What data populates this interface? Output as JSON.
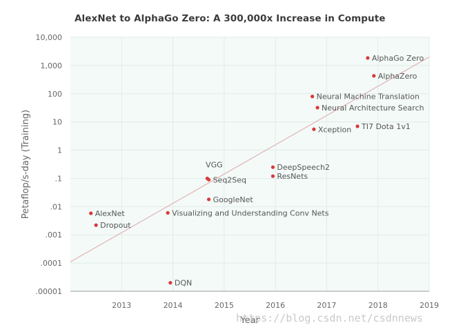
{
  "chart_data": {
    "type": "scatter",
    "title": "AlexNet to AlphaGo Zero: A 300,000x Increase in Compute",
    "xlabel": "Year",
    "ylabel": "Petaflop/s-day (Training)",
    "y_scale": "log",
    "xlim": [
      2012.0,
      2019.0
    ],
    "ylim": [
      1e-05,
      10000
    ],
    "x_ticks": [
      2013,
      2014,
      2015,
      2016,
      2017,
      2018,
      2019
    ],
    "x_tick_labels": [
      "2013",
      "2014",
      "2015",
      "2016",
      "2017",
      "2018",
      "2019"
    ],
    "y_ticks": [
      1e-05,
      0.0001,
      0.001,
      0.01,
      0.1,
      1,
      10,
      100,
      1000,
      10000
    ],
    "y_tick_labels": [
      ".00001",
      ".0001",
      ".001",
      ".01",
      ".1",
      "1",
      "10",
      "100",
      "1,000",
      "10,000"
    ],
    "grid": true,
    "trend_line": {
      "x": [
        2012.0,
        2019.0
      ],
      "y": [
        0.00011,
        2000
      ]
    },
    "points": [
      {
        "label": "AlexNet",
        "x": 2012.4,
        "y": 0.0058
      },
      {
        "label": "Dropout",
        "x": 2012.5,
        "y": 0.0022
      },
      {
        "label": "DQN",
        "x": 2013.95,
        "y": 2e-05
      },
      {
        "label": "Visualizing and Understanding Conv Nets",
        "x": 2013.9,
        "y": 0.006
      },
      {
        "label": "GoogleNet",
        "x": 2014.7,
        "y": 0.018
      },
      {
        "label": "Seq2Seq",
        "x": 2014.7,
        "y": 0.09
      },
      {
        "label": "VGG",
        "x": 2014.67,
        "y": 0.1
      },
      {
        "label": "DeepSpeech2",
        "x": 2015.95,
        "y": 0.25
      },
      {
        "label": "ResNets",
        "x": 2015.95,
        "y": 0.12
      },
      {
        "label": "Neural Machine Translation",
        "x": 2016.72,
        "y": 80
      },
      {
        "label": "Neural Architecture Search",
        "x": 2016.82,
        "y": 32
      },
      {
        "label": "Xception",
        "x": 2016.75,
        "y": 5.5
      },
      {
        "label": "TI7 Dota 1v1",
        "x": 2017.6,
        "y": 7
      },
      {
        "label": "AlphaGo Zero",
        "x": 2017.8,
        "y": 1850
      },
      {
        "label": "AlphaZero",
        "x": 2017.92,
        "y": 430
      }
    ]
  },
  "watermark": "https://blog.csdn.net/csdnnews",
  "colors": {
    "plot_bg": "#f3faf7",
    "grid": "#e2ece8",
    "point": "#d8393b",
    "trend": "#e0a3aa",
    "axis": "#9a9a9a"
  }
}
